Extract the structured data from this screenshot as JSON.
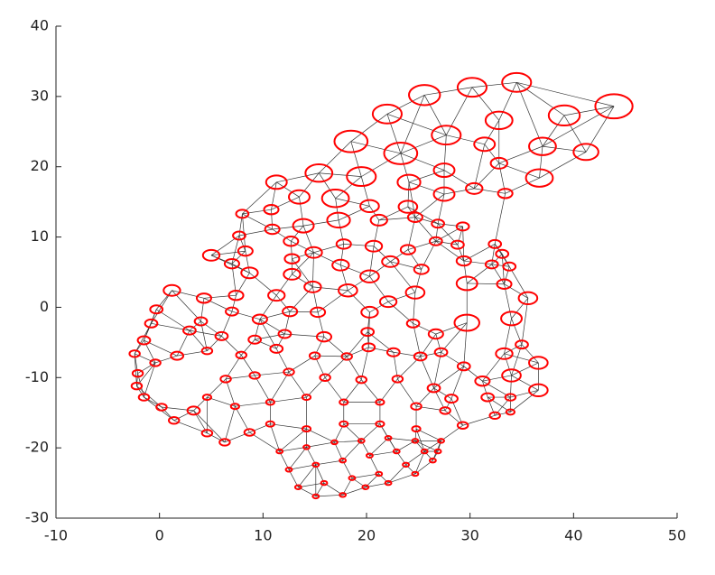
{
  "chart_data": {
    "type": "scatter",
    "x": [
      43.9,
      34.5,
      30.2,
      25.6,
      22.0,
      18.5,
      23.3,
      27.7,
      32.8,
      39.1,
      37.0,
      41.2,
      31.4,
      36.7,
      32.8,
      27.5,
      24.1,
      19.5,
      15.4,
      11.3,
      13.5,
      17.0,
      20.3,
      24.0,
      27.5,
      30.4,
      33.4,
      13.9,
      17.3,
      21.2,
      24.7,
      26.9,
      29.3,
      10.8,
      8.0,
      7.7,
      10.9,
      12.7,
      14.9,
      17.8,
      20.7,
      24.0,
      26.7,
      28.8,
      32.4,
      33.1,
      5.0,
      8.3,
      12.8,
      17.5,
      20.3,
      22.3,
      25.3,
      29.4,
      32.1,
      33.8,
      7.0,
      8.7,
      12.8,
      14.8,
      18.2,
      24.7,
      29.7,
      33.3,
      35.6,
      11.3,
      7.4,
      4.3,
      1.2,
      22.1,
      20.3,
      15.3,
      12.6,
      9.7,
      7.0,
      4.0,
      -0.3,
      29.7,
      34.0,
      24.5,
      26.7,
      20.1,
      15.9,
      12.1,
      9.2,
      6.0,
      2.9,
      -0.8,
      -1.5,
      -2.4,
      35.0,
      33.3,
      36.6,
      34.0,
      36.6,
      31.2,
      29.4,
      27.2,
      25.2,
      22.6,
      20.2,
      18.1,
      15.0,
      11.3,
      7.9,
      4.6,
      1.7,
      -0.4,
      -2.1,
      -2.2,
      -1.5,
      0.2,
      3.3,
      1.4,
      4.6,
      6.3,
      8.7,
      6.4,
      9.2,
      12.5,
      16.0,
      19.5,
      23.0,
      26.5,
      28.2,
      31.7,
      33.9,
      32.4,
      33.9,
      29.3,
      27.6,
      24.8,
      21.3,
      17.8,
      14.2,
      10.7,
      7.3,
      4.6,
      10.7,
      14.2,
      17.8,
      21.3,
      24.8,
      27.2,
      11.6,
      14.2,
      16.9,
      19.5,
      22.1,
      24.7,
      12.5,
      15.1,
      17.7,
      20.3,
      22.9,
      25.6,
      13.4,
      15.9,
      18.6,
      21.2,
      23.8,
      26.4,
      15.1,
      17.7,
      19.9,
      22.1,
      24.7,
      26.9
    ],
    "values": [
      28.6,
      32.0,
      31.3,
      30.2,
      27.5,
      23.6,
      21.9,
      24.5,
      26.6,
      27.3,
      22.9,
      22.1,
      23.2,
      18.4,
      20.5,
      19.5,
      17.8,
      18.6,
      19.1,
      17.8,
      15.7,
      15.5,
      14.4,
      14.3,
      16.1,
      16.9,
      16.2,
      11.6,
      12.4,
      12.4,
      12.8,
      11.9,
      11.5,
      13.9,
      13.3,
      10.2,
      11.1,
      9.4,
      7.8,
      9.0,
      8.7,
      8.2,
      9.4,
      8.9,
      9.0,
      7.6,
      7.4,
      8.0,
      6.9,
      6.0,
      4.4,
      6.5,
      5.4,
      6.6,
      6.1,
      5.8,
      6.2,
      4.9,
      4.7,
      2.9,
      2.4,
      2.1,
      3.4,
      3.3,
      1.3,
      1.7,
      1.7,
      1.3,
      2.4,
      0.8,
      -0.7,
      -0.7,
      -0.6,
      -1.7,
      -0.6,
      -2.0,
      -0.3,
      -2.2,
      -1.6,
      -2.3,
      -3.8,
      -3.5,
      -4.2,
      -3.8,
      -4.6,
      -4.1,
      -3.3,
      -2.3,
      -4.7,
      -6.6,
      -5.3,
      -6.6,
      -7.9,
      -9.7,
      -11.8,
      -10.5,
      -8.4,
      -6.4,
      -7.0,
      -6.4,
      -5.7,
      -7.0,
      -6.9,
      -5.9,
      -6.8,
      -6.2,
      -6.9,
      -7.9,
      -9.4,
      -11.2,
      -12.8,
      -14.2,
      -14.7,
      -16.1,
      -17.9,
      -19.2,
      -17.8,
      -10.2,
      -9.7,
      -9.2,
      -10.0,
      -10.3,
      -10.2,
      -11.5,
      -13.0,
      -12.8,
      -12.8,
      -15.4,
      -14.9,
      -16.8,
      -14.7,
      -14.1,
      -13.5,
      -13.5,
      -12.8,
      -13.5,
      -14.1,
      -12.8,
      -16.6,
      -17.3,
      -16.6,
      -16.6,
      -17.3,
      -19.0,
      -20.5,
      -19.9,
      -19.2,
      -19.0,
      -18.6,
      -19.0,
      -23.1,
      -22.4,
      -21.8,
      -21.1,
      -20.5,
      -20.5,
      -25.6,
      -25.0,
      -24.3,
      -23.7,
      -22.4,
      -21.8,
      -26.9,
      -26.7,
      -25.6,
      -25.0,
      -23.7,
      -20.5
    ],
    "sizes": [
      1.8,
      1.4,
      1.4,
      1.5,
      1.4,
      1.6,
      1.6,
      1.4,
      1.3,
      1.5,
      1.3,
      1.2,
      1.0,
      1.3,
      0.8,
      1.0,
      1.1,
      1.4,
      1.3,
      1.0,
      1.0,
      1.3,
      0.9,
      0.9,
      1.0,
      0.8,
      0.7,
      1.0,
      1.1,
      0.8,
      0.7,
      0.6,
      0.6,
      0.7,
      0.6,
      0.6,
      0.7,
      0.7,
      0.8,
      0.7,
      0.8,
      0.7,
      0.6,
      0.6,
      0.6,
      0.6,
      0.8,
      0.7,
      0.7,
      0.8,
      0.9,
      0.8,
      0.7,
      0.7,
      0.6,
      0.6,
      0.7,
      0.8,
      0.8,
      0.8,
      0.9,
      0.9,
      1.0,
      0.7,
      0.9,
      0.8,
      0.7,
      0.7,
      0.8,
      0.8,
      0.8,
      0.7,
      0.7,
      0.7,
      0.6,
      0.6,
      0.6,
      1.2,
      1.0,
      0.6,
      0.7,
      0.6,
      0.7,
      0.6,
      0.6,
      0.6,
      0.6,
      0.6,
      0.6,
      0.5,
      0.6,
      0.8,
      0.9,
      0.9,
      0.9,
      0.7,
      0.6,
      0.6,
      0.6,
      0.6,
      0.6,
      0.5,
      0.5,
      0.6,
      0.5,
      0.5,
      0.6,
      0.5,
      0.5,
      0.5,
      0.5,
      0.5,
      0.6,
      0.5,
      0.5,
      0.5,
      0.5,
      0.5,
      0.5,
      0.5,
      0.5,
      0.5,
      0.5,
      0.6,
      0.6,
      0.6,
      0.5,
      0.5,
      0.4,
      0.5,
      0.5,
      0.5,
      0.4,
      0.4,
      0.4,
      0.4,
      0.4,
      0.4,
      0.4,
      0.4,
      0.4,
      0.4,
      0.4,
      0.3,
      0.3,
      0.3,
      0.3,
      0.3,
      0.3,
      0.3,
      0.3,
      0.3,
      0.3,
      0.3,
      0.3,
      0.3,
      0.3,
      0.3,
      0.3,
      0.3,
      0.3,
      0.3,
      0.3,
      0.3,
      0.3,
      0.3,
      0.3,
      0.3
    ],
    "color": "#ff0000",
    "edge_color": "#333333",
    "xlim": [
      -10,
      50
    ],
    "xticks": [
      -10,
      0,
      10,
      20,
      30,
      40,
      50
    ],
    "ylim": [
      -30,
      40
    ],
    "yticks": [
      -30,
      -20,
      -10,
      0,
      10,
      20,
      30,
      40
    ]
  }
}
